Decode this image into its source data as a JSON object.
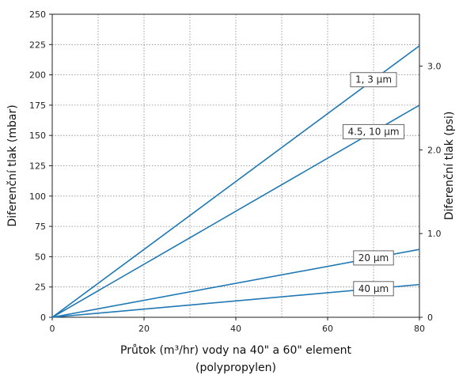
{
  "chart_data": {
    "type": "line",
    "xlabel_line1": "Průtok (m³/hr) vody na 40\" a 60\" element",
    "xlabel_line2": "(polypropylen)",
    "ylabel": "Diferenční tlak (mbar)",
    "y2label": "Diferenční tlak (psi)",
    "xlim": [
      0,
      80
    ],
    "ylim": [
      0,
      250
    ],
    "y2lim": [
      0,
      3.62
    ],
    "xticks": [
      0,
      20,
      40,
      60,
      80
    ],
    "yticks": [
      0,
      25,
      50,
      75,
      100,
      125,
      150,
      175,
      200,
      225,
      250
    ],
    "y2ticks": [
      0,
      1.0,
      2.0,
      3.0
    ],
    "y2tick_labels": [
      "0",
      "1.0",
      "2.0",
      "3.0"
    ],
    "grid": true,
    "line_color": "#1f78b4",
    "series": [
      {
        "name": "1, 3 µm",
        "x": [
          0,
          80
        ],
        "y": [
          0,
          224
        ]
      },
      {
        "name": "4.5, 10 µm",
        "x": [
          0,
          80
        ],
        "y": [
          0,
          175
        ]
      },
      {
        "name": "20 µm",
        "x": [
          0,
          80
        ],
        "y": [
          0,
          56
        ]
      },
      {
        "name": "40 µm",
        "x": [
          0,
          80
        ],
        "y": [
          0,
          27
        ]
      }
    ]
  }
}
